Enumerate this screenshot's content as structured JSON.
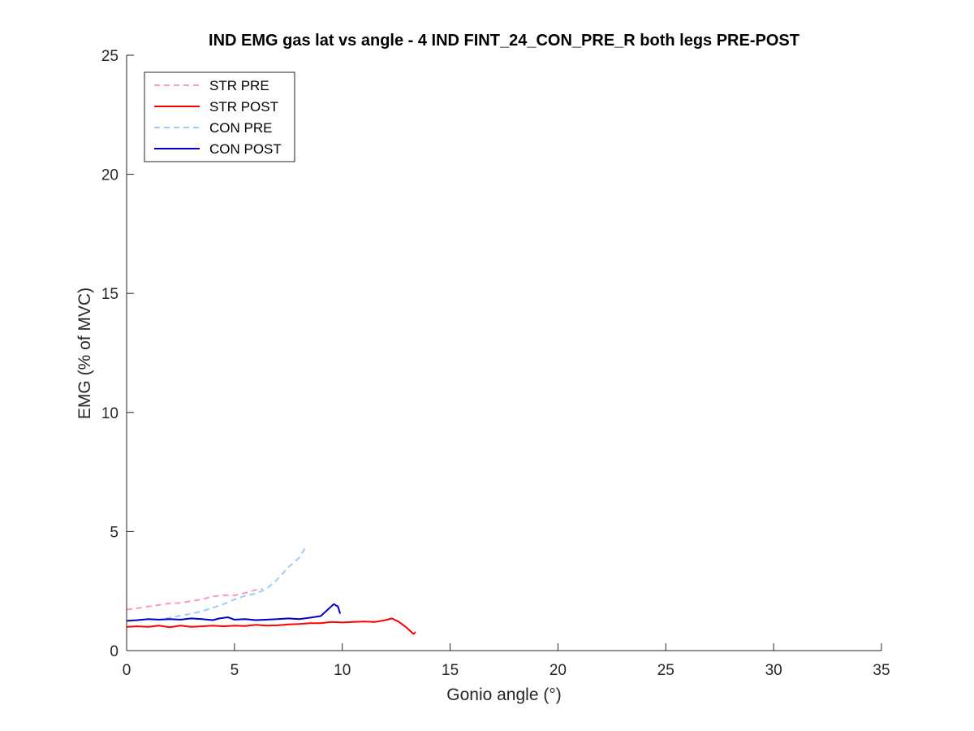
{
  "chart_data": {
    "type": "line",
    "title": "IND EMG gas lat vs angle - 4 IND FINT_24_CON_PRE_R both legs PRE-POST",
    "xlabel": "Gonio angle (°)",
    "ylabel": "EMG (% of MVC)",
    "xlim": [
      0,
      35
    ],
    "ylim": [
      0,
      25
    ],
    "xticks": [
      0,
      5,
      10,
      15,
      20,
      25,
      30,
      35
    ],
    "yticks": [
      0,
      5,
      10,
      15,
      20,
      25
    ],
    "xtick_labels": [
      "0",
      "5",
      "10",
      "15",
      "20",
      "25",
      "30",
      "35"
    ],
    "ytick_labels": [
      "0",
      "5",
      "10",
      "15",
      "20",
      "25"
    ],
    "grid": false,
    "legend_position": "top-left",
    "series": [
      {
        "name": "STR PRE",
        "color": "#ff99bb",
        "dash": "dashed",
        "x": [
          0.0,
          0.5,
          1.0,
          1.5,
          2.0,
          2.5,
          3.0,
          3.5,
          4.0,
          4.5,
          5.0,
          5.5,
          6.0,
          6.3
        ],
        "y": [
          1.72,
          1.78,
          1.85,
          1.92,
          1.98,
          2.0,
          2.08,
          2.15,
          2.28,
          2.33,
          2.32,
          2.42,
          2.55,
          2.6
        ]
      },
      {
        "name": "STR POST",
        "color": "#ff0000",
        "dash": "solid",
        "x": [
          0.0,
          0.5,
          1.0,
          1.5,
          2.0,
          2.5,
          3.0,
          3.5,
          4.0,
          4.5,
          5.0,
          5.5,
          6.0,
          6.5,
          7.0,
          7.5,
          8.0,
          8.5,
          9.0,
          9.5,
          10.0,
          10.5,
          11.0,
          11.5,
          12.0,
          12.3,
          12.6,
          13.0,
          13.3,
          13.4
        ],
        "y": [
          1.0,
          1.02,
          1.0,
          1.05,
          0.98,
          1.05,
          1.0,
          1.02,
          1.05,
          1.02,
          1.05,
          1.03,
          1.08,
          1.05,
          1.06,
          1.1,
          1.12,
          1.15,
          1.15,
          1.2,
          1.18,
          1.2,
          1.22,
          1.2,
          1.28,
          1.35,
          1.22,
          0.95,
          0.7,
          0.78
        ]
      },
      {
        "name": "CON PRE",
        "color": "#99ccff",
        "dash": "dashed",
        "x": [
          1.8,
          2.2,
          2.6,
          3.0,
          3.5,
          4.0,
          4.5,
          5.0,
          5.5,
          6.0,
          6.5,
          7.0,
          7.5,
          8.0,
          8.3
        ],
        "y": [
          1.35,
          1.42,
          1.48,
          1.55,
          1.65,
          1.8,
          1.95,
          2.15,
          2.3,
          2.4,
          2.6,
          3.0,
          3.5,
          3.9,
          4.35
        ]
      },
      {
        "name": "CON POST",
        "color": "#0000cc",
        "dash": "solid",
        "x": [
          0.0,
          0.5,
          1.0,
          1.5,
          2.0,
          2.5,
          3.0,
          3.5,
          4.0,
          4.3,
          4.7,
          5.0,
          5.5,
          6.0,
          6.5,
          7.0,
          7.5,
          8.0,
          8.5,
          9.0,
          9.3,
          9.6,
          9.8,
          9.9
        ],
        "y": [
          1.25,
          1.28,
          1.32,
          1.3,
          1.32,
          1.3,
          1.35,
          1.32,
          1.28,
          1.35,
          1.4,
          1.3,
          1.32,
          1.28,
          1.3,
          1.32,
          1.35,
          1.32,
          1.38,
          1.45,
          1.7,
          1.95,
          1.85,
          1.55
        ]
      }
    ]
  }
}
